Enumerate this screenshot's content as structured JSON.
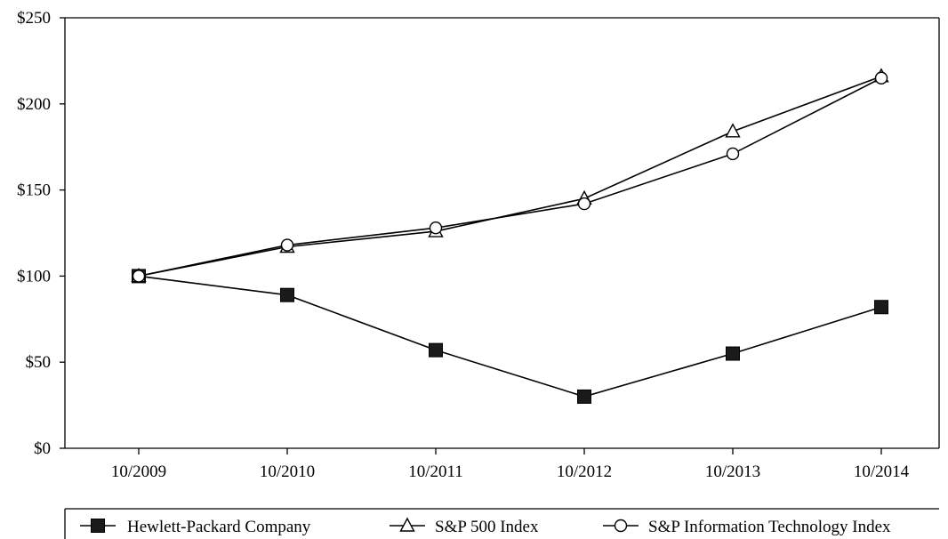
{
  "chart_data": {
    "type": "line",
    "categories": [
      "10/2009",
      "10/2010",
      "10/2011",
      "10/2012",
      "10/2013",
      "10/2014"
    ],
    "series": [
      {
        "name": "Hewlett-Packard Company",
        "marker": "filled-square",
        "values": [
          100,
          89,
          57,
          30,
          55,
          82
        ]
      },
      {
        "name": "S&P 500 Index",
        "marker": "open-triangle",
        "values": [
          100,
          117,
          126,
          145,
          184,
          216
        ]
      },
      {
        "name": "S&P Information Technology Index",
        "marker": "open-circle",
        "values": [
          100,
          118,
          128,
          142,
          171,
          215
        ]
      }
    ],
    "ylim": [
      0,
      250
    ],
    "yticks": [
      0,
      50,
      100,
      150,
      200,
      250
    ],
    "ytick_labels": [
      "$0",
      "$50",
      "$100",
      "$150",
      "$200",
      "$250"
    ],
    "title": "",
    "xlabel": "",
    "ylabel": "",
    "grid": false,
    "legend_position": "bottom",
    "colors": {
      "line": "#000000",
      "marker_fill": "#1a1a1a",
      "background": "#ffffff"
    }
  }
}
